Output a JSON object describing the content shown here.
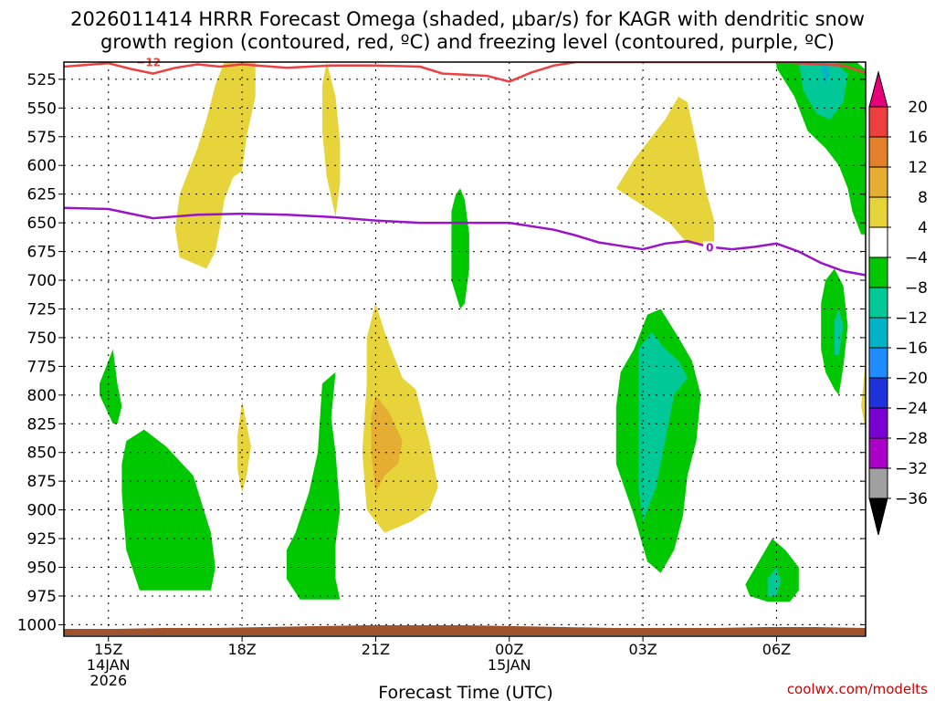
{
  "chart_data": {
    "type": "time-height contour",
    "title_line1": "2026011414 HRRR Forecast Omega (shaded, μbar/s) for KAGR with dendritic snow",
    "title_line2": "growth region (contoured, red, ºC) and freezing level (contoured, purple, ºC)",
    "xlabel": "Forecast Time (UTC)",
    "y_ticks": [
      525,
      550,
      575,
      600,
      625,
      650,
      675,
      700,
      725,
      750,
      775,
      800,
      825,
      850,
      875,
      900,
      925,
      950,
      975,
      1000
    ],
    "ylim": [
      510,
      1010
    ],
    "x_range_hours": [
      14,
      32
    ],
    "x_ticks": [
      {
        "hour": 15,
        "lines": [
          "15Z",
          "14JAN",
          "2026"
        ]
      },
      {
        "hour": 18,
        "lines": [
          "18Z"
        ]
      },
      {
        "hour": 21,
        "lines": [
          "21Z"
        ]
      },
      {
        "hour": 24,
        "lines": [
          "00Z",
          "15JAN"
        ]
      },
      {
        "hour": 27,
        "lines": [
          "03Z"
        ]
      },
      {
        "hour": 30,
        "lines": [
          "06Z"
        ]
      }
    ],
    "colorbar": {
      "levels": [
        "20",
        "16",
        "12",
        "8",
        "4",
        "−4",
        "−8",
        "−12",
        "−16",
        "−20",
        "−24",
        "−28",
        "−32",
        "−36"
      ],
      "colors": [
        "#e8007a",
        "#ee3f3f",
        "#e4802a",
        "#e5ae32",
        "#e6d43a",
        "#ffffff",
        "#00c800",
        "#00c896",
        "#00b4c8",
        "#1e8cff",
        "#1e32dc",
        "#7800d2",
        "#aa00c8",
        "#a0a0a0",
        "#000000"
      ]
    },
    "omega_colors": {
      "yellow": "#e6d43a",
      "orange": "#e5ae32",
      "green": "#00c800",
      "teal": "#00c896",
      "cyan": "#00b4c8"
    },
    "omega_regions": [
      {
        "color": "yellow",
        "points": [
          [
            16.6,
            680
          ],
          [
            16.5,
            655
          ],
          [
            16.6,
            625
          ],
          [
            16.8,
            605
          ],
          [
            17.0,
            585
          ],
          [
            17.2,
            560
          ],
          [
            17.4,
            530
          ],
          [
            17.6,
            510
          ],
          [
            18.3,
            510
          ],
          [
            18.3,
            540
          ],
          [
            18.1,
            575
          ],
          [
            18.0,
            605
          ],
          [
            17.8,
            610
          ],
          [
            17.6,
            630
          ],
          [
            17.5,
            655
          ],
          [
            17.4,
            675
          ],
          [
            17.2,
            690
          ]
        ]
      },
      {
        "color": "yellow",
        "points": [
          [
            19.9,
            510
          ],
          [
            20.1,
            540
          ],
          [
            20.2,
            580
          ],
          [
            20.2,
            615
          ],
          [
            20.1,
            645
          ],
          [
            19.9,
            610
          ],
          [
            19.8,
            570
          ],
          [
            19.8,
            530
          ]
        ]
      },
      {
        "color": "yellow",
        "points": [
          [
            17.9,
            835
          ],
          [
            18.0,
            805
          ],
          [
            18.2,
            845
          ],
          [
            18.1,
            870
          ],
          [
            18.0,
            885
          ],
          [
            17.9,
            865
          ]
        ]
      },
      {
        "color": "yellow",
        "points": [
          [
            21.0,
            720
          ],
          [
            21.2,
            745
          ],
          [
            21.6,
            785
          ],
          [
            21.9,
            795
          ],
          [
            22.2,
            840
          ],
          [
            22.4,
            880
          ],
          [
            22.2,
            900
          ],
          [
            21.8,
            910
          ],
          [
            21.2,
            920
          ],
          [
            20.8,
            900
          ],
          [
            20.7,
            850
          ],
          [
            20.8,
            790
          ],
          [
            20.8,
            750
          ]
        ]
      },
      {
        "color": "orange",
        "points": [
          [
            21.0,
            800
          ],
          [
            21.3,
            815
          ],
          [
            21.6,
            840
          ],
          [
            21.5,
            860
          ],
          [
            21.2,
            870
          ],
          [
            21.0,
            885
          ],
          [
            20.9,
            850
          ],
          [
            20.9,
            820
          ]
        ]
      },
      {
        "color": "yellow",
        "points": [
          [
            26.4,
            620
          ],
          [
            26.8,
            595
          ],
          [
            27.2,
            575
          ],
          [
            27.5,
            560
          ],
          [
            27.8,
            540
          ],
          [
            28.0,
            545
          ],
          [
            28.2,
            580
          ],
          [
            28.4,
            620
          ],
          [
            28.6,
            648
          ],
          [
            28.6,
            668
          ],
          [
            28.0,
            668
          ],
          [
            27.6,
            650
          ],
          [
            27.2,
            640
          ],
          [
            26.8,
            630
          ]
        ]
      },
      {
        "color": "yellow",
        "points": [
          [
            32.1,
            740
          ],
          [
            32.0,
            770
          ],
          [
            31.9,
            810
          ],
          [
            32.0,
            830
          ],
          [
            32.1,
            835
          ]
        ]
      },
      {
        "color": "orange",
        "points": [
          [
            32.1,
            760
          ],
          [
            32.0,
            780
          ],
          [
            32.1,
            790
          ]
        ]
      },
      {
        "color": "green",
        "points": [
          [
            15.0,
            770
          ],
          [
            15.1,
            760
          ],
          [
            15.2,
            790
          ],
          [
            15.3,
            810
          ],
          [
            15.2,
            825
          ],
          [
            15.1,
            825
          ],
          [
            14.8,
            800
          ],
          [
            14.8,
            790
          ]
        ]
      },
      {
        "color": "green",
        "points": [
          [
            15.4,
            840
          ],
          [
            15.8,
            830
          ],
          [
            16.3,
            845
          ],
          [
            16.9,
            870
          ],
          [
            17.3,
            920
          ],
          [
            17.4,
            950
          ],
          [
            17.3,
            970
          ],
          [
            16.6,
            970
          ],
          [
            15.7,
            970
          ],
          [
            15.4,
            935
          ],
          [
            15.3,
            885
          ],
          [
            15.3,
            860
          ]
        ]
      },
      {
        "color": "green",
        "points": [
          [
            22.9,
            620
          ],
          [
            23.0,
            630
          ],
          [
            23.1,
            660
          ],
          [
            23.1,
            690
          ],
          [
            23.0,
            720
          ],
          [
            22.9,
            725
          ],
          [
            22.7,
            700
          ],
          [
            22.7,
            665
          ],
          [
            22.7,
            640
          ],
          [
            22.8,
            625
          ]
        ]
      },
      {
        "color": "green",
        "points": [
          [
            20.1,
            780
          ],
          [
            20.0,
            820
          ],
          [
            20.1,
            850
          ],
          [
            20.2,
            900
          ],
          [
            20.1,
            930
          ],
          [
            20.1,
            960
          ],
          [
            20.2,
            978
          ],
          [
            19.3,
            978
          ],
          [
            19.0,
            960
          ],
          [
            19.0,
            935
          ],
          [
            19.2,
            920
          ],
          [
            19.5,
            885
          ],
          [
            19.7,
            850
          ],
          [
            19.8,
            790
          ]
        ]
      },
      {
        "color": "green",
        "points": [
          [
            26.8,
            760
          ],
          [
            27.1,
            730
          ],
          [
            27.4,
            725
          ],
          [
            27.8,
            750
          ],
          [
            28.1,
            770
          ],
          [
            28.3,
            800
          ],
          [
            28.2,
            840
          ],
          [
            28.0,
            870
          ],
          [
            27.9,
            905
          ],
          [
            27.7,
            935
          ],
          [
            27.4,
            955
          ],
          [
            27.1,
            945
          ],
          [
            26.8,
            905
          ],
          [
            26.4,
            860
          ],
          [
            26.4,
            810
          ],
          [
            26.5,
            780
          ]
        ]
      },
      {
        "color": "teal",
        "points": [
          [
            26.9,
            760
          ],
          [
            27.2,
            745
          ],
          [
            27.5,
            760
          ],
          [
            27.8,
            770
          ],
          [
            28.0,
            785
          ],
          [
            27.7,
            800
          ],
          [
            27.5,
            840
          ],
          [
            27.3,
            880
          ],
          [
            27.0,
            910
          ],
          [
            26.9,
            880
          ],
          [
            26.9,
            840
          ]
        ]
      },
      {
        "color": "green",
        "points": [
          [
            29.3,
            965
          ],
          [
            29.6,
            945
          ],
          [
            29.9,
            925
          ],
          [
            30.2,
            935
          ],
          [
            30.5,
            950
          ],
          [
            30.5,
            970
          ],
          [
            30.3,
            980
          ],
          [
            29.8,
            980
          ],
          [
            29.4,
            975
          ]
        ]
      },
      {
        "color": "teal",
        "points": [
          [
            29.8,
            960
          ],
          [
            30.0,
            950
          ],
          [
            30.1,
            962
          ],
          [
            30.0,
            975
          ],
          [
            29.8,
            975
          ]
        ]
      },
      {
        "color": "green",
        "points": [
          [
            31.0,
            720
          ],
          [
            31.1,
            700
          ],
          [
            31.3,
            690
          ],
          [
            31.5,
            705
          ],
          [
            31.6,
            740
          ],
          [
            31.5,
            775
          ],
          [
            31.4,
            800
          ],
          [
            31.3,
            795
          ],
          [
            31.1,
            780
          ],
          [
            31.0,
            760
          ]
        ]
      },
      {
        "color": "teal",
        "points": [
          [
            31.3,
            735
          ],
          [
            31.4,
            725
          ],
          [
            31.5,
            740
          ],
          [
            31.4,
            765
          ],
          [
            31.3,
            765
          ]
        ]
      },
      {
        "color": "green",
        "points": [
          [
            30.0,
            510
          ],
          [
            31.8,
            510
          ],
          [
            32.1,
            520
          ],
          [
            32.1,
            660
          ],
          [
            31.9,
            660
          ],
          [
            31.7,
            640
          ],
          [
            31.6,
            620
          ],
          [
            31.4,
            600
          ],
          [
            31.1,
            585
          ],
          [
            30.7,
            570
          ],
          [
            30.4,
            540
          ],
          [
            30.0,
            515
          ]
        ]
      },
      {
        "color": "teal",
        "points": [
          [
            30.5,
            510
          ],
          [
            31.3,
            510
          ],
          [
            31.6,
            520
          ],
          [
            31.5,
            545
          ],
          [
            31.2,
            560
          ],
          [
            30.9,
            555
          ],
          [
            30.6,
            535
          ]
        ]
      },
      {
        "color": "cyan",
        "points": [
          [
            31.0,
            515
          ],
          [
            31.1,
            510
          ],
          [
            31.2,
            520
          ],
          [
            31.1,
            530
          ]
        ]
      },
      {
        "color": "teal",
        "points": [
          [
            32.0,
            595
          ],
          [
            32.1,
            590
          ],
          [
            32.1,
            620
          ],
          [
            32.0,
            625
          ]
        ]
      }
    ],
    "dgz_line": {
      "color": "#ee4040",
      "label": "−12",
      "points": [
        [
          14,
          514
        ],
        [
          15,
          511
        ],
        [
          15.5,
          516
        ],
        [
          16,
          520
        ],
        [
          16.5,
          515
        ],
        [
          17,
          512
        ],
        [
          17.5,
          514
        ],
        [
          18,
          512
        ],
        [
          19,
          515
        ],
        [
          20,
          513
        ],
        [
          21,
          513
        ],
        [
          22,
          514
        ],
        [
          22.5,
          520
        ],
        [
          23,
          521
        ],
        [
          23.5,
          522
        ],
        [
          24,
          527
        ],
        [
          24.5,
          519
        ],
        [
          25,
          513
        ],
        [
          25.5,
          510
        ],
        [
          30.0,
          510
        ],
        [
          31.5,
          513
        ],
        [
          32.2,
          522
        ]
      ]
    },
    "freezing_line": {
      "color": "#9a14c8",
      "label": "0",
      "points": [
        [
          14,
          637
        ],
        [
          15,
          638
        ],
        [
          15.5,
          642
        ],
        [
          16,
          646
        ],
        [
          17,
          643
        ],
        [
          18,
          642
        ],
        [
          19,
          643
        ],
        [
          20,
          645
        ],
        [
          21,
          648
        ],
        [
          22,
          650
        ],
        [
          23,
          650
        ],
        [
          24,
          650
        ],
        [
          25,
          656
        ],
        [
          25.5,
          661
        ],
        [
          26,
          667
        ],
        [
          26.5,
          670
        ],
        [
          27,
          673
        ],
        [
          27.5,
          668
        ],
        [
          28,
          666
        ],
        [
          28.5,
          671
        ],
        [
          29,
          673
        ],
        [
          29.5,
          671
        ],
        [
          30,
          668
        ],
        [
          30.5,
          675
        ],
        [
          31,
          685
        ],
        [
          31.5,
          692
        ],
        [
          32.2,
          697
        ]
      ]
    },
    "terrain_color": "#a0522d",
    "credit": "coolwx.com/modelts"
  }
}
